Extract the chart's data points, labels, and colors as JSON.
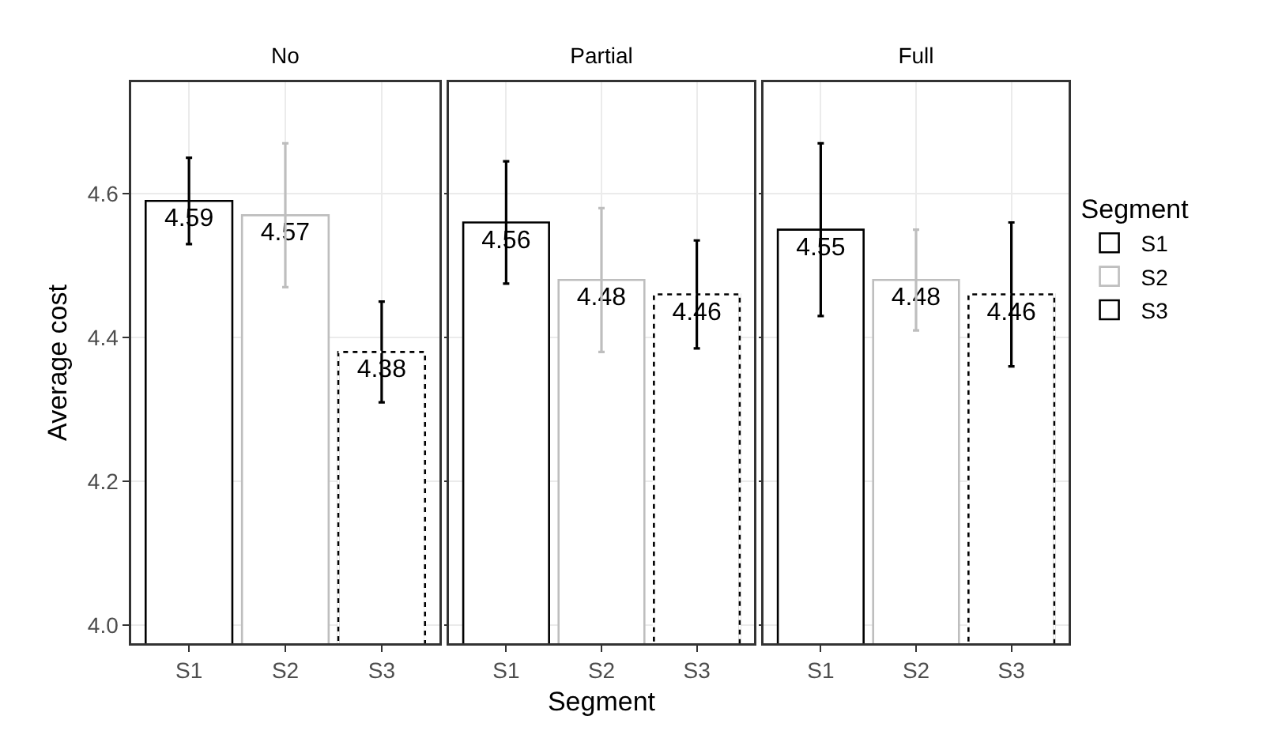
{
  "chart_data": [
    {
      "type": "bar",
      "title": "No",
      "ylabel": "Average cost",
      "categories": [
        "S1",
        "S2",
        "S3"
      ],
      "ylim": [
        3.975,
        4.755
      ],
      "yticks": [
        {
          "value": 4,
          "label": "4.0"
        },
        4.2,
        4.4,
        {
          "value": 4.6,
          "label": "4.6"
        }
      ],
      "grid": true,
      "data_labels": true,
      "legend": false,
      "series": [
        {
          "color": "#000000",
          "line_style": "solid",
          "values": [
            4.59,
            null,
            null
          ],
          "errors": [
            0.06,
            null,
            null
          ]
        },
        {
          "color": "#bebebe",
          "line_style": "solid",
          "values": [
            null,
            4.57,
            null
          ],
          "errors": [
            null,
            0.1,
            null
          ]
        },
        {
          "color": "#000000",
          "line_style": "dashed",
          "values": [
            null,
            null,
            4.38
          ],
          "errors": [
            null,
            null,
            0.07
          ]
        }
      ]
    },
    {
      "type": "bar",
      "title": "Partial",
      "xlabel": "Segment",
      "categories": [
        "S1",
        "S2",
        "S3"
      ],
      "ylim": [
        3.975,
        4.755
      ],
      "yticks": [
        4,
        4.2,
        4.4,
        4.6
      ],
      "tick_labels": "x",
      "grid": true,
      "data_labels": true,
      "legend": false,
      "series": [
        {
          "color": "#000000",
          "line_style": "solid",
          "values": [
            4.56,
            null,
            null
          ],
          "errors": [
            0.085,
            null,
            null
          ]
        },
        {
          "color": "#bebebe",
          "line_style": "solid",
          "values": [
            null,
            4.48,
            null
          ],
          "errors": [
            null,
            0.1,
            null
          ]
        },
        {
          "color": "#000000",
          "line_style": "dashed",
          "values": [
            null,
            null,
            4.46
          ],
          "errors": [
            null,
            null,
            0.075
          ]
        }
      ]
    },
    {
      "type": "bar",
      "title": "Full",
      "legend_title": "Segment",
      "categories": [
        "S1",
        "S2",
        "S3"
      ],
      "ylim": [
        3.975,
        4.755
      ],
      "yticks": [
        4,
        4.2,
        4.4,
        4.6
      ],
      "tick_labels": "x",
      "grid": true,
      "data_labels": true,
      "legend": "right",
      "series": [
        {
          "name": "S1",
          "color": "#000000",
          "line_style": "solid",
          "values": [
            4.55,
            null,
            null
          ],
          "errors": [
            0.12,
            null,
            null
          ]
        },
        {
          "name": "S2",
          "color": "#bebebe",
          "line_style": "solid",
          "values": [
            null,
            4.48,
            null
          ],
          "errors": [
            null,
            0.07,
            null
          ]
        },
        {
          "name": "S3",
          "color": "#000000",
          "line_style": "dashed",
          "values": [
            null,
            null,
            4.46
          ],
          "errors": [
            null,
            null,
            0.1
          ]
        }
      ]
    }
  ]
}
